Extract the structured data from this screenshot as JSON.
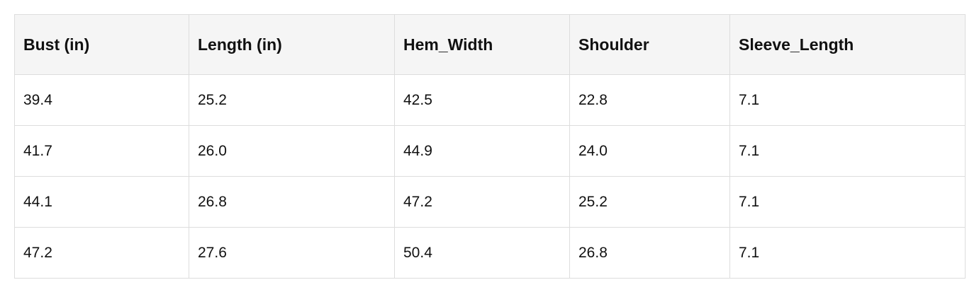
{
  "table": {
    "header": [
      "Bust (in)",
      "Length (in)",
      "Hem_Width",
      "Shoulder",
      "Sleeve_Length"
    ],
    "rows": [
      [
        "39.4",
        "25.2",
        "42.5",
        "22.8",
        "7.1"
      ],
      [
        "41.7",
        "26.0",
        "44.9",
        "24.0",
        "7.1"
      ],
      [
        "44.1",
        "26.8",
        "47.2",
        "25.2",
        "7.1"
      ],
      [
        "47.2",
        "27.6",
        "50.4",
        "26.8",
        "7.1"
      ]
    ]
  }
}
